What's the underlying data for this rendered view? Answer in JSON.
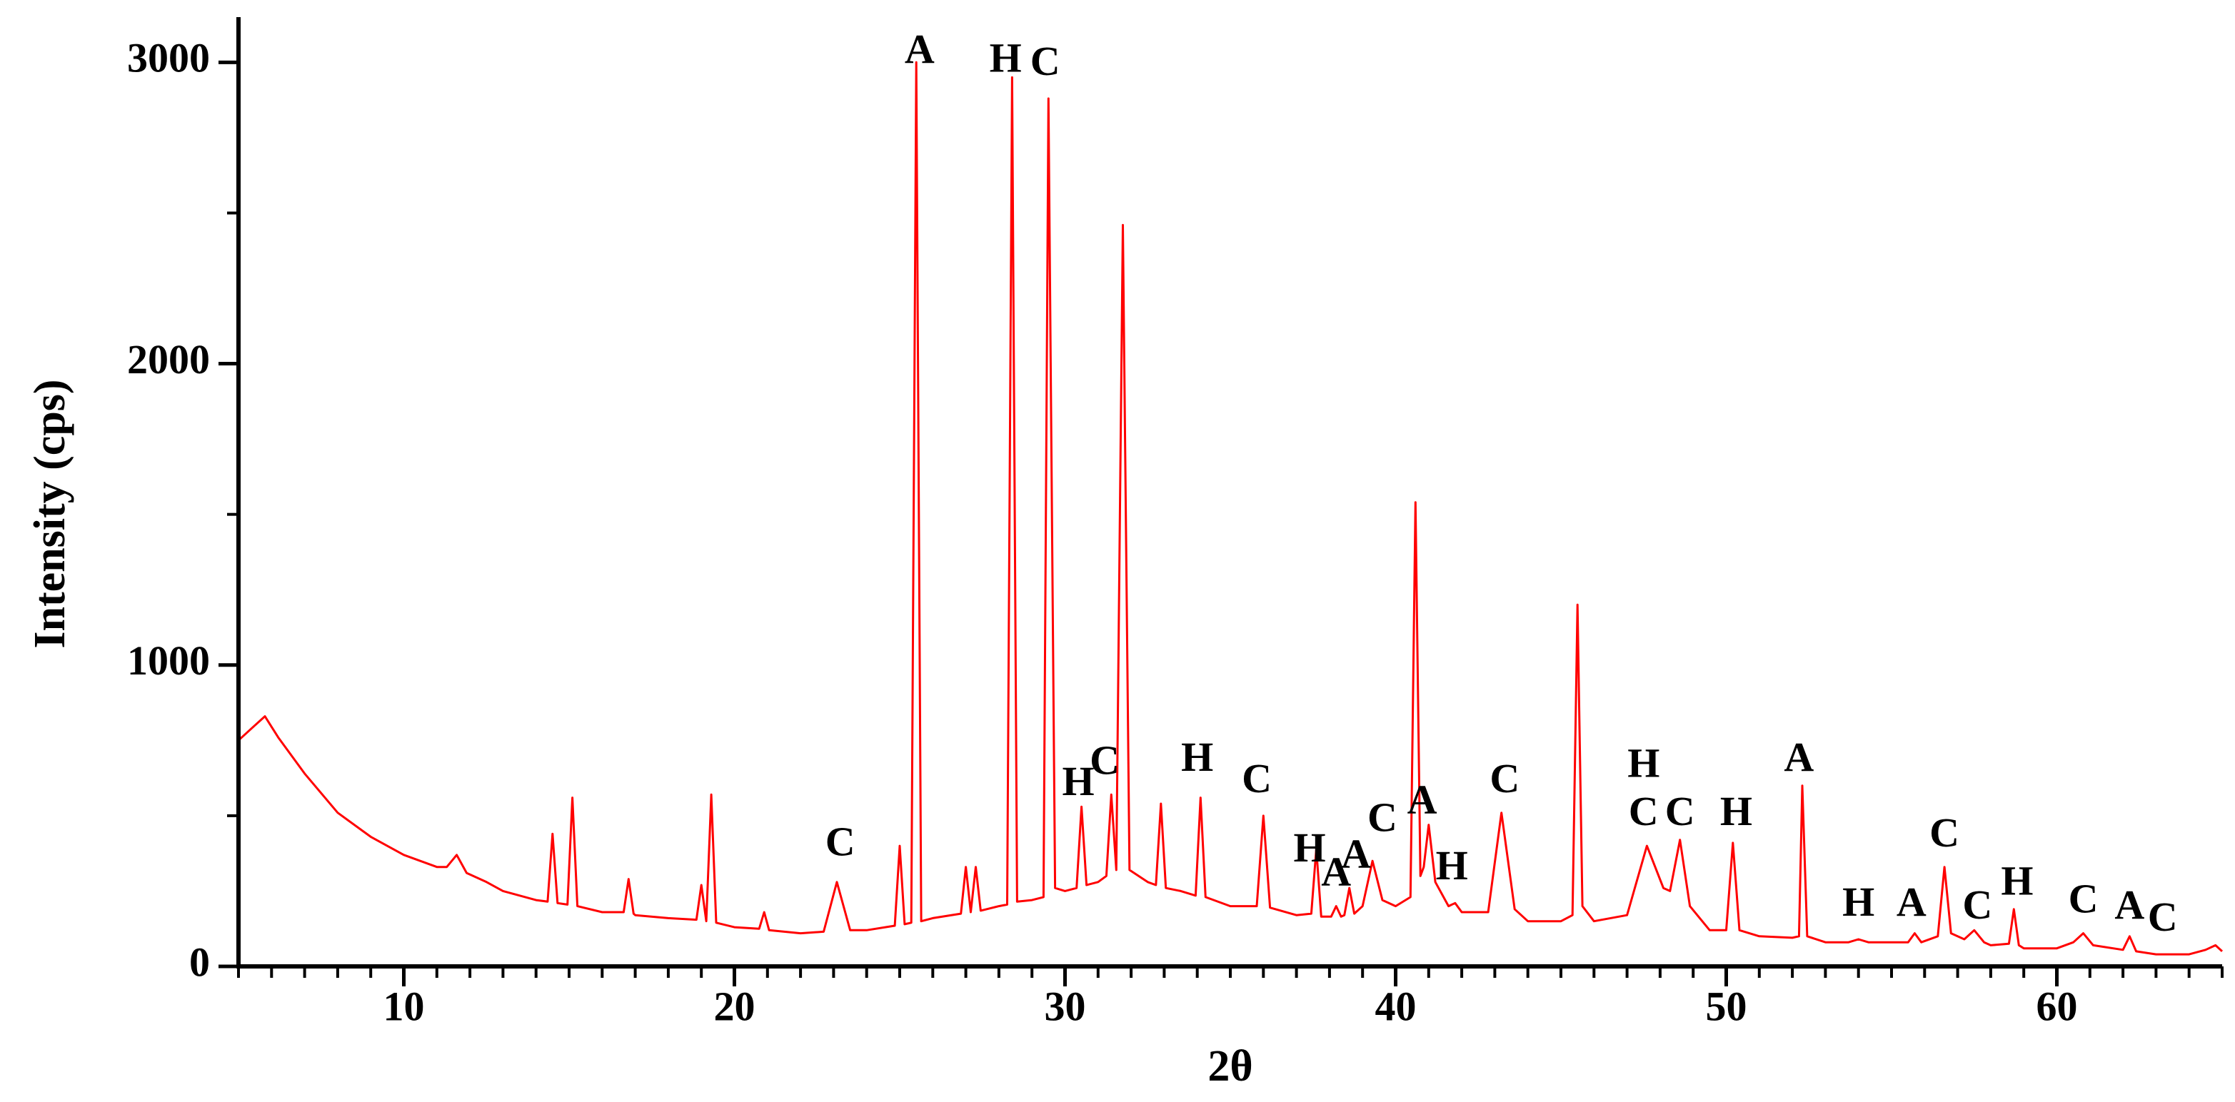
{
  "chart_data": {
    "type": "line",
    "x_label": "2θ",
    "y_label": "Intensity (cps)",
    "color": "#ff0000",
    "xlim": [
      5,
      65
    ],
    "xticks": [
      10,
      20,
      30,
      40,
      50,
      60
    ],
    "ylim": [
      0,
      3150
    ],
    "yticks": [
      0,
      1000,
      2000,
      3000
    ],
    "x": [
      5,
      5.5,
      5.8,
      6.2,
      7,
      8,
      9,
      10,
      11,
      11.3,
      11.6,
      11.9,
      12.5,
      13,
      14,
      14.35,
      14.5,
      14.65,
      14.95,
      15.1,
      15.25,
      16,
      16.65,
      16.8,
      16.95,
      17,
      18,
      18.85,
      19.0,
      19.15,
      19.3,
      19.45,
      20,
      20.75,
      20.9,
      21.05,
      22,
      22.7,
      23.1,
      23.5,
      24,
      24.85,
      25.0,
      25.15,
      25.35,
      25.5,
      25.65,
      26,
      26.85,
      27.0,
      27.15,
      27.3,
      27.45,
      28,
      28.25,
      28.4,
      28.55,
      29,
      29.35,
      29.5,
      29.7,
      30,
      30.35,
      30.5,
      30.65,
      31,
      31.25,
      31.4,
      31.55,
      31.75,
      31.95,
      32.5,
      32.75,
      32.9,
      33.05,
      33.5,
      33.95,
      34.1,
      34.25,
      35,
      35.8,
      36.0,
      36.2,
      37,
      37.45,
      37.6,
      37.75,
      38.05,
      38.2,
      38.35,
      38.45,
      38.6,
      38.75,
      39,
      39.3,
      39.6,
      40,
      40.45,
      40.6,
      40.75,
      40.85,
      41.0,
      41.2,
      41.6,
      41.8,
      42,
      42.8,
      43.2,
      43.6,
      44,
      45,
      45.35,
      45.5,
      45.65,
      46,
      47,
      47.6,
      48.1,
      48.3,
      48.6,
      48.9,
      49.5,
      50,
      50.2,
      50.4,
      51,
      52,
      52.2,
      52.3,
      52.45,
      53,
      53.7,
      54,
      54.3,
      55,
      55.5,
      55.7,
      55.9,
      56.4,
      56.6,
      56.8,
      57.2,
      57.5,
      57.8,
      58,
      58.55,
      58.7,
      58.85,
      59,
      60,
      60.5,
      60.8,
      61.1,
      62,
      62.2,
      62.4,
      63,
      64,
      64.5,
      64.8,
      65
    ],
    "values": [
      750,
      800,
      830,
      760,
      640,
      510,
      430,
      370,
      330,
      330,
      370,
      310,
      280,
      250,
      220,
      215,
      440,
      210,
      205,
      560,
      200,
      180,
      180,
      290,
      175,
      170,
      160,
      155,
      270,
      150,
      570,
      145,
      130,
      125,
      180,
      120,
      110,
      115,
      280,
      120,
      120,
      135,
      400,
      140,
      145,
      3000,
      150,
      160,
      175,
      330,
      180,
      330,
      185,
      200,
      205,
      2950,
      215,
      220,
      230,
      2880,
      260,
      250,
      260,
      530,
      270,
      280,
      300,
      570,
      320,
      2460,
      320,
      280,
      270,
      540,
      260,
      250,
      235,
      560,
      230,
      200,
      200,
      500,
      195,
      170,
      175,
      390,
      165,
      165,
      200,
      165,
      170,
      260,
      175,
      200,
      350,
      220,
      200,
      230,
      1540,
      300,
      330,
      470,
      280,
      200,
      210,
      180,
      180,
      510,
      190,
      150,
      150,
      170,
      1200,
      200,
      150,
      170,
      400,
      260,
      250,
      420,
      200,
      120,
      120,
      410,
      120,
      100,
      95,
      100,
      600,
      100,
      80,
      80,
      90,
      80,
      80,
      80,
      110,
      80,
      100,
      330,
      110,
      90,
      120,
      80,
      70,
      75,
      190,
      70,
      60,
      60,
      80,
      110,
      70,
      55,
      100,
      50,
      40,
      40,
      55,
      70,
      50
    ],
    "annotations": [
      {
        "text": "C",
        "x": 23.2,
        "y": 400
      },
      {
        "text": "A",
        "x": 25.6,
        "y": 3030
      },
      {
        "text": "H",
        "x": 28.2,
        "y": 3000
      },
      {
        "text": "C",
        "x": 29.4,
        "y": 2990
      },
      {
        "text": "H",
        "x": 30.4,
        "y": 600
      },
      {
        "text": "C",
        "x": 31.2,
        "y": 670
      },
      {
        "text": "H",
        "x": 34.0,
        "y": 680
      },
      {
        "text": "C",
        "x": 35.8,
        "y": 610
      },
      {
        "text": "H",
        "x": 37.4,
        "y": 380
      },
      {
        "text": "A",
        "x": 38.2,
        "y": 300
      },
      {
        "text": "A",
        "x": 38.8,
        "y": 360
      },
      {
        "text": "C",
        "x": 39.6,
        "y": 480
      },
      {
        "text": "A",
        "x": 40.8,
        "y": 540
      },
      {
        "text": "H",
        "x": 41.7,
        "y": 320
      },
      {
        "text": "C",
        "x": 43.3,
        "y": 610
      },
      {
        "text": "H",
        "x": 47.5,
        "y": 660
      },
      {
        "text": "C",
        "x": 47.5,
        "y": 500
      },
      {
        "text": "C",
        "x": 48.6,
        "y": 500
      },
      {
        "text": "H",
        "x": 50.3,
        "y": 500
      },
      {
        "text": "A",
        "x": 52.2,
        "y": 680
      },
      {
        "text": "H",
        "x": 54.0,
        "y": 200
      },
      {
        "text": "A",
        "x": 55.6,
        "y": 200
      },
      {
        "text": "C",
        "x": 56.6,
        "y": 430
      },
      {
        "text": "C",
        "x": 57.6,
        "y": 190
      },
      {
        "text": "H",
        "x": 58.8,
        "y": 270
      },
      {
        "text": "C",
        "x": 60.8,
        "y": 210
      },
      {
        "text": "A",
        "x": 62.2,
        "y": 190
      },
      {
        "text": "C",
        "x": 63.2,
        "y": 150
      }
    ]
  }
}
